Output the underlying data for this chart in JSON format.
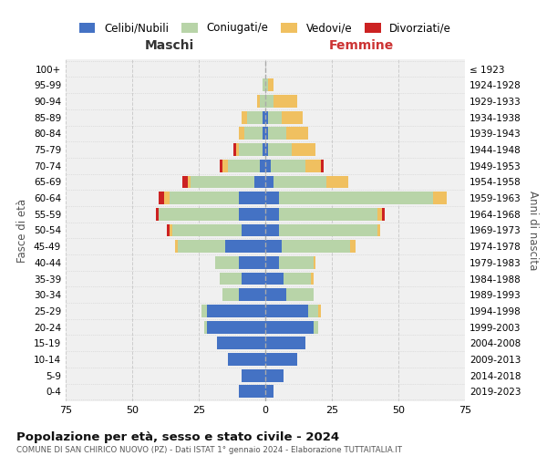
{
  "age_groups": [
    "0-4",
    "5-9",
    "10-14",
    "15-19",
    "20-24",
    "25-29",
    "30-34",
    "35-39",
    "40-44",
    "45-49",
    "50-54",
    "55-59",
    "60-64",
    "65-69",
    "70-74",
    "75-79",
    "80-84",
    "85-89",
    "90-94",
    "95-99",
    "100+"
  ],
  "birth_years": [
    "2019-2023",
    "2014-2018",
    "2009-2013",
    "2004-2008",
    "1999-2003",
    "1994-1998",
    "1989-1993",
    "1984-1988",
    "1979-1983",
    "1974-1978",
    "1969-1973",
    "1964-1968",
    "1959-1963",
    "1954-1958",
    "1949-1953",
    "1944-1948",
    "1939-1943",
    "1934-1938",
    "1929-1933",
    "1924-1928",
    "≤ 1923"
  ],
  "maschi": {
    "celibi": [
      10,
      9,
      14,
      18,
      22,
      22,
      10,
      9,
      10,
      15,
      9,
      10,
      10,
      4,
      2,
      1,
      1,
      1,
      0,
      0,
      0
    ],
    "coniugati": [
      0,
      0,
      0,
      0,
      1,
      2,
      6,
      8,
      9,
      18,
      26,
      30,
      26,
      24,
      12,
      9,
      7,
      6,
      2,
      1,
      0
    ],
    "vedovi": [
      0,
      0,
      0,
      0,
      0,
      0,
      0,
      0,
      0,
      1,
      1,
      0,
      2,
      1,
      2,
      1,
      2,
      2,
      1,
      0,
      0
    ],
    "divorziati": [
      0,
      0,
      0,
      0,
      0,
      0,
      0,
      0,
      0,
      0,
      1,
      1,
      2,
      2,
      1,
      1,
      0,
      0,
      0,
      0,
      0
    ]
  },
  "femmine": {
    "nubili": [
      3,
      7,
      12,
      15,
      18,
      16,
      8,
      7,
      5,
      6,
      5,
      5,
      5,
      3,
      2,
      1,
      1,
      1,
      0,
      0,
      0
    ],
    "coniugate": [
      0,
      0,
      0,
      0,
      2,
      4,
      10,
      10,
      13,
      26,
      37,
      37,
      58,
      20,
      13,
      9,
      7,
      5,
      3,
      1,
      0
    ],
    "vedove": [
      0,
      0,
      0,
      0,
      0,
      1,
      0,
      1,
      1,
      2,
      1,
      2,
      5,
      8,
      6,
      9,
      8,
      8,
      9,
      2,
      0
    ],
    "divorziate": [
      0,
      0,
      0,
      0,
      0,
      0,
      0,
      0,
      0,
      0,
      0,
      1,
      0,
      0,
      1,
      0,
      0,
      0,
      0,
      0,
      0
    ]
  },
  "color_celibi": "#4472c4",
  "color_coniugati": "#b8d4a8",
  "color_vedovi": "#f0c060",
  "color_divorziati": "#cc2222",
  "title": "Popolazione per età, sesso e stato civile - 2024",
  "subtitle": "COMUNE DI SAN CHIRICO NUOVO (PZ) - Dati ISTAT 1° gennaio 2024 - Elaborazione TUTTAITALIA.IT",
  "xlabel_left": "Maschi",
  "xlabel_right": "Femmine",
  "ylabel_left": "Fasce di età",
  "ylabel_right": "Anni di nascita",
  "xlim": 75,
  "bg_color": "#f0f0f0",
  "grid_color": "#cccccc"
}
